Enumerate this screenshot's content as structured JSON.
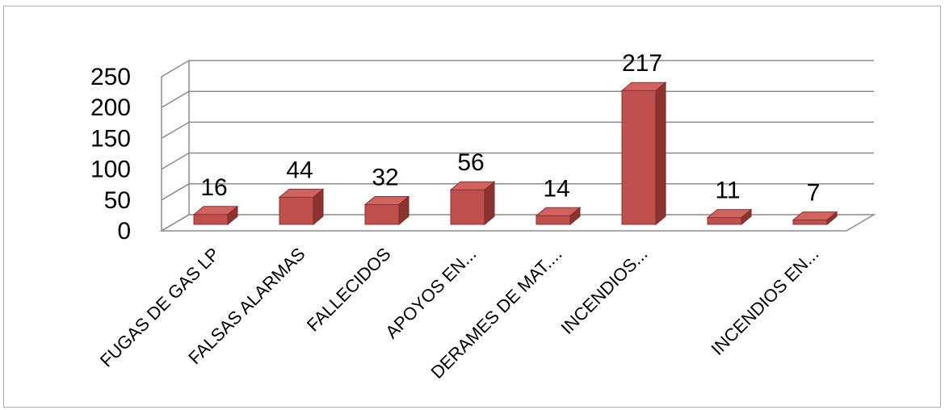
{
  "chart_data": {
    "type": "bar",
    "style": "3d-column",
    "categories": [
      "FUGAS DE GAS LP",
      "FALSAS ALARMAS",
      "FALLECIDOS",
      "APOYOS EN...",
      "DERAMES DE MAT....",
      "INCENDIOS...",
      "",
      "INCENDIOS EN..."
    ],
    "values": [
      16,
      44,
      32,
      56,
      14,
      217,
      11,
      7
    ],
    "ylim": [
      0,
      250
    ],
    "yticks": [
      "0",
      "50",
      "100",
      "150",
      "200",
      "250"
    ],
    "grid": true,
    "legend": "none",
    "colors": {
      "bar_front": "#c0504d",
      "bar_top": "#d0625f",
      "bar_side": "#8c3330",
      "grid": "#8c8c8c"
    }
  }
}
